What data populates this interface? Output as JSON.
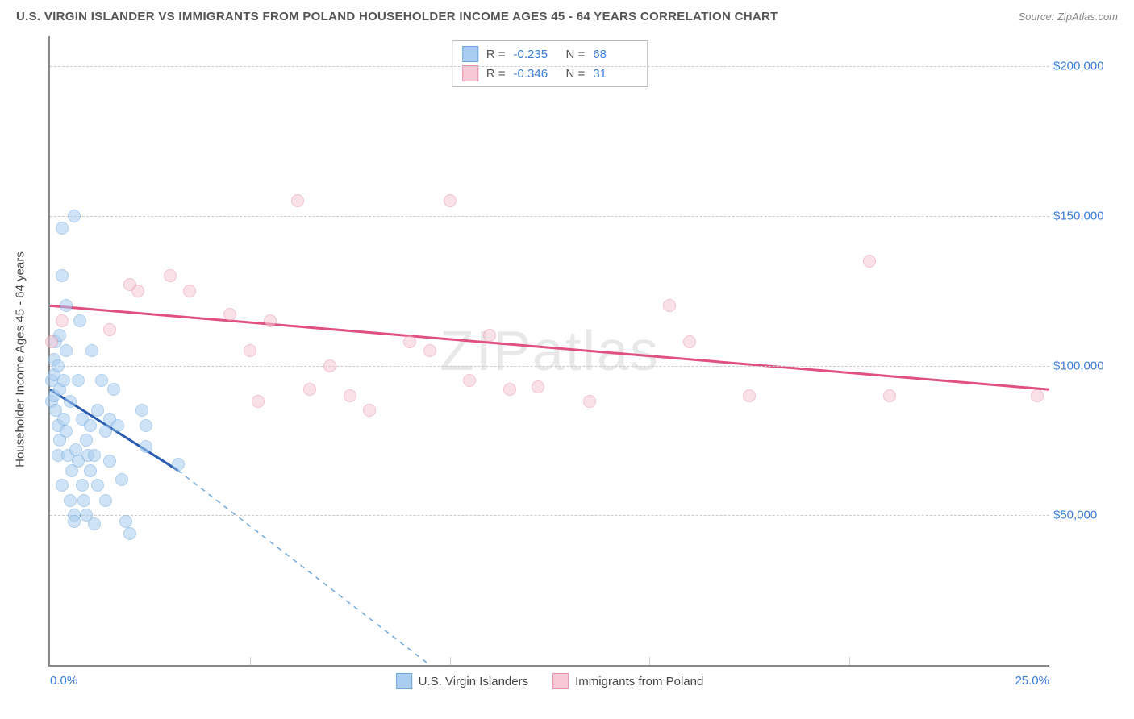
{
  "header": {
    "title": "U.S. VIRGIN ISLANDER VS IMMIGRANTS FROM POLAND HOUSEHOLDER INCOME AGES 45 - 64 YEARS CORRELATION CHART",
    "source": "Source: ZipAtlas.com"
  },
  "chart": {
    "type": "scatter",
    "ylabel": "Householder Income Ages 45 - 64 years",
    "watermark": "ZIPatlas",
    "xlim": [
      0,
      25
    ],
    "ylim": [
      0,
      210000
    ],
    "xtick_labels": {
      "left": "0.0%",
      "right": "25.0%"
    },
    "xtick_minor": [
      5,
      10,
      15,
      20
    ],
    "yticks": [
      {
        "v": 50000,
        "label": "$50,000"
      },
      {
        "v": 100000,
        "label": "$100,000"
      },
      {
        "v": 150000,
        "label": "$150,000"
      },
      {
        "v": 200000,
        "label": "$200,000"
      }
    ],
    "background_color": "#ffffff",
    "grid_color": "#cccccc",
    "axis_color": "#888888",
    "tick_label_color": "#3b7dd8",
    "point_radius": 8,
    "point_opacity": 0.55,
    "series": [
      {
        "name": "U.S. Virgin Islanders",
        "color_fill": "#a9cdf0",
        "color_stroke": "#6fa8dc",
        "line_color": "#2a5db0",
        "line_width": 3,
        "dash_color": "#6fa8dc",
        "R": "-0.235",
        "N": "68",
        "trend": {
          "x1": 0,
          "y1": 92000,
          "x2": 3.2,
          "y2": 65000
        },
        "trend_dash": {
          "x1": 3.2,
          "y1": 65000,
          "x2": 9.5,
          "y2": 0
        },
        "points": [
          [
            0.05,
            95000
          ],
          [
            0.05,
            88000
          ],
          [
            0.1,
            102000
          ],
          [
            0.1,
            97000
          ],
          [
            0.1,
            90000
          ],
          [
            0.15,
            108000
          ],
          [
            0.15,
            85000
          ],
          [
            0.2,
            100000
          ],
          [
            0.2,
            80000
          ],
          [
            0.2,
            70000
          ],
          [
            0.25,
            110000
          ],
          [
            0.25,
            92000
          ],
          [
            0.25,
            75000
          ],
          [
            0.3,
            146000
          ],
          [
            0.3,
            130000
          ],
          [
            0.3,
            60000
          ],
          [
            0.35,
            95000
          ],
          [
            0.35,
            82000
          ],
          [
            0.4,
            120000
          ],
          [
            0.4,
            105000
          ],
          [
            0.4,
            78000
          ],
          [
            0.45,
            70000
          ],
          [
            0.5,
            55000
          ],
          [
            0.5,
            88000
          ],
          [
            0.55,
            65000
          ],
          [
            0.6,
            150000
          ],
          [
            0.6,
            50000
          ],
          [
            0.6,
            48000
          ],
          [
            0.65,
            72000
          ],
          [
            0.7,
            95000
          ],
          [
            0.7,
            68000
          ],
          [
            0.75,
            115000
          ],
          [
            0.8,
            60000
          ],
          [
            0.8,
            82000
          ],
          [
            0.85,
            55000
          ],
          [
            0.9,
            50000
          ],
          [
            0.9,
            75000
          ],
          [
            0.95,
            70000
          ],
          [
            1.0,
            65000
          ],
          [
            1.0,
            80000
          ],
          [
            1.05,
            105000
          ],
          [
            1.1,
            70000
          ],
          [
            1.1,
            47000
          ],
          [
            1.2,
            60000
          ],
          [
            1.2,
            85000
          ],
          [
            1.3,
            95000
          ],
          [
            1.4,
            55000
          ],
          [
            1.4,
            78000
          ],
          [
            1.5,
            82000
          ],
          [
            1.5,
            68000
          ],
          [
            1.6,
            92000
          ],
          [
            1.7,
            80000
          ],
          [
            1.8,
            62000
          ],
          [
            1.9,
            48000
          ],
          [
            2.0,
            44000
          ],
          [
            2.3,
            85000
          ],
          [
            2.4,
            80000
          ],
          [
            2.4,
            73000
          ],
          [
            3.2,
            67000
          ]
        ]
      },
      {
        "name": "Immigrants from Poland",
        "color_fill": "#f7c9d4",
        "color_stroke": "#e890a8",
        "line_color": "#e05080",
        "line_width": 3,
        "R": "-0.346",
        "N": "31",
        "trend": {
          "x1": 0,
          "y1": 120000,
          "x2": 25,
          "y2": 92000
        },
        "points": [
          [
            0.05,
            108000
          ],
          [
            0.3,
            115000
          ],
          [
            1.5,
            112000
          ],
          [
            2.0,
            127000
          ],
          [
            2.2,
            125000
          ],
          [
            3.0,
            130000
          ],
          [
            3.5,
            125000
          ],
          [
            4.5,
            117000
          ],
          [
            5.0,
            105000
          ],
          [
            5.2,
            88000
          ],
          [
            5.5,
            115000
          ],
          [
            6.2,
            155000
          ],
          [
            6.5,
            92000
          ],
          [
            7.0,
            100000
          ],
          [
            7.5,
            90000
          ],
          [
            8.0,
            85000
          ],
          [
            9.0,
            108000
          ],
          [
            9.5,
            105000
          ],
          [
            10.0,
            155000
          ],
          [
            10.5,
            95000
          ],
          [
            11.0,
            110000
          ],
          [
            11.5,
            92000
          ],
          [
            12.2,
            93000
          ],
          [
            13.5,
            88000
          ],
          [
            15.5,
            120000
          ],
          [
            16.0,
            108000
          ],
          [
            17.5,
            90000
          ],
          [
            20.5,
            135000
          ],
          [
            21.0,
            90000
          ],
          [
            24.7,
            90000
          ]
        ]
      }
    ],
    "legend_top": [
      {
        "swatch_fill": "#a9cdf0",
        "swatch_stroke": "#6fa8dc",
        "r_label": "R =",
        "r_val": "-0.235",
        "n_label": "N =",
        "n_val": "68"
      },
      {
        "swatch_fill": "#f7c9d4",
        "swatch_stroke": "#e890a8",
        "r_label": "R =",
        "r_val": "-0.346",
        "n_label": "N =",
        "n_val": "31"
      }
    ],
    "legend_bottom": [
      {
        "swatch_fill": "#a9cdf0",
        "swatch_stroke": "#6fa8dc",
        "label": "U.S. Virgin Islanders"
      },
      {
        "swatch_fill": "#f7c9d4",
        "swatch_stroke": "#e890a8",
        "label": "Immigrants from Poland"
      }
    ]
  }
}
